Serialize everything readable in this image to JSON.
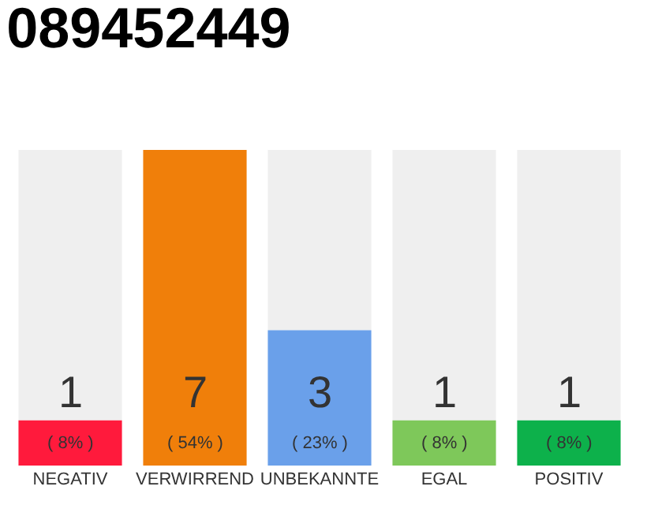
{
  "chart_data": {
    "type": "bar",
    "title": "089452449",
    "categories": [
      "NEGATIV",
      "VERWIRREND",
      "UNBEKANNTE",
      "EGAL",
      "POSITIV"
    ],
    "values": [
      1,
      7,
      3,
      1,
      1
    ],
    "colors": [
      "#ff1a3c",
      "#f07f0a",
      "#6aa0ea",
      "#7ec85a",
      "#0db14b"
    ],
    "value_labels": [
      "1",
      "7",
      "3",
      "1",
      "1"
    ],
    "tick_labels": "x",
    "annotations": [
      "( 8% )",
      "( 54% )",
      "( 23% )",
      "( 8% )",
      "( 8% )"
    ]
  }
}
